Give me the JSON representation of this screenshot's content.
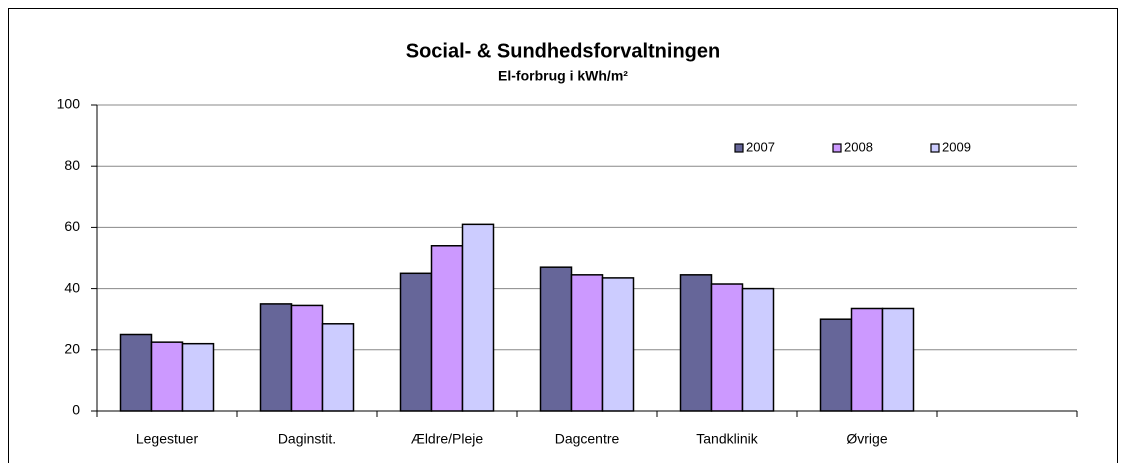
{
  "chart_data": {
    "type": "bar",
    "title": "Social- & Sundhedsforvaltningen",
    "subtitle": "El-forbrug i kWh/m²",
    "categories": [
      "Legestuer",
      "Daginstit.",
      "Ældre/Pleje",
      "Dagcentre",
      "Tandklinik",
      "Øvrige",
      null
    ],
    "series": [
      {
        "name": "2007",
        "color": "#666699",
        "values": [
          25,
          35,
          45,
          47,
          44.5,
          30,
          null
        ]
      },
      {
        "name": "2008",
        "color": "#cc99ff",
        "values": [
          22.5,
          34.5,
          54,
          44.5,
          41.5,
          33.5,
          null
        ]
      },
      {
        "name": "2009",
        "color": "#ccccff",
        "values": [
          22,
          28.5,
          61,
          43.5,
          40,
          33.5,
          null
        ]
      }
    ],
    "ylim": [
      0,
      100
    ],
    "yticks": [
      0,
      20,
      40,
      60,
      80,
      100
    ],
    "grid": true,
    "legend": "top-right"
  }
}
